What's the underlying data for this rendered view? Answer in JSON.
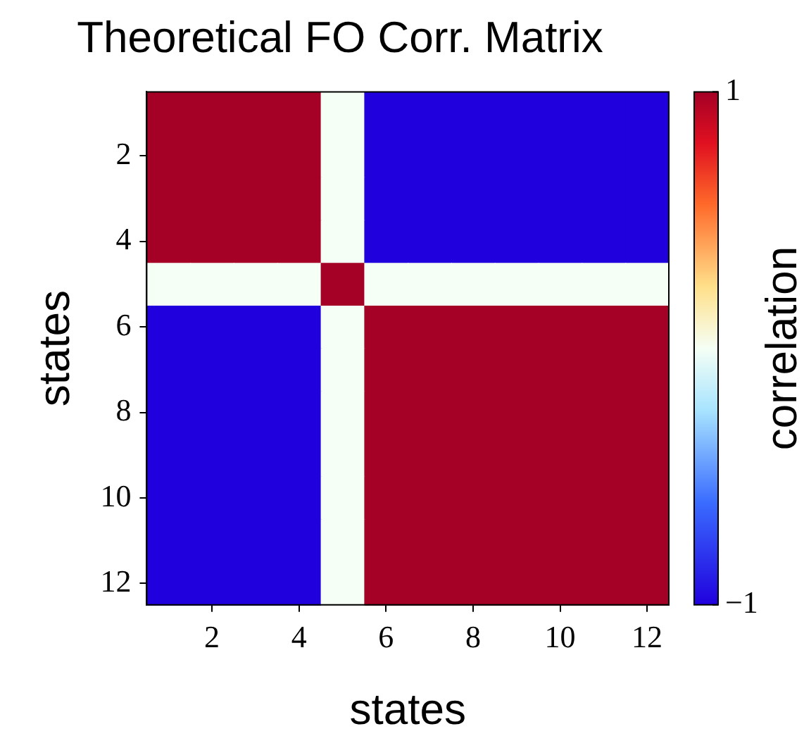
{
  "chart_data": {
    "type": "heatmap",
    "title": "Theoretical FO Corr. Matrix",
    "xlabel": "states",
    "ylabel": "states",
    "clabel": "correlation",
    "categories": [
      null,
      "2",
      null,
      "4",
      null,
      "6",
      null,
      "8",
      null,
      "10",
      null,
      "12"
    ],
    "y_categories": [
      null,
      "2",
      null,
      "4",
      null,
      "6",
      null,
      "8",
      null,
      "10",
      null,
      "12"
    ],
    "cells": [
      [
        1,
        1,
        1,
        1,
        0,
        -1,
        -1,
        -1,
        -1,
        -1,
        -1,
        -1
      ],
      [
        1,
        1,
        1,
        1,
        0,
        -1,
        -1,
        -1,
        -1,
        -1,
        -1,
        -1
      ],
      [
        1,
        1,
        1,
        1,
        0,
        -1,
        -1,
        -1,
        -1,
        -1,
        -1,
        -1
      ],
      [
        1,
        1,
        1,
        1,
        0,
        -1,
        -1,
        -1,
        -1,
        -1,
        -1,
        -1
      ],
      [
        0,
        0,
        0,
        0,
        1,
        0,
        0,
        0,
        0,
        0,
        0,
        0
      ],
      [
        -1,
        -1,
        -1,
        -1,
        0,
        1,
        1,
        1,
        1,
        1,
        1,
        1
      ],
      [
        -1,
        -1,
        -1,
        -1,
        0,
        1,
        1,
        1,
        1,
        1,
        1,
        1
      ],
      [
        -1,
        -1,
        -1,
        -1,
        0,
        1,
        1,
        1,
        1,
        1,
        1,
        1
      ],
      [
        -1,
        -1,
        -1,
        -1,
        0,
        1,
        1,
        1,
        1,
        1,
        1,
        1
      ],
      [
        -1,
        -1,
        -1,
        -1,
        0,
        1,
        1,
        1,
        1,
        1,
        1,
        1
      ],
      [
        -1,
        -1,
        -1,
        -1,
        0,
        1,
        1,
        1,
        1,
        1,
        1,
        1
      ],
      [
        -1,
        -1,
        -1,
        -1,
        0,
        1,
        1,
        1,
        1,
        1,
        1,
        1
      ]
    ],
    "clim": [
      -1,
      1
    ],
    "cticks": [
      {
        "value": -1,
        "label": "−1"
      },
      1
    ]
  }
}
